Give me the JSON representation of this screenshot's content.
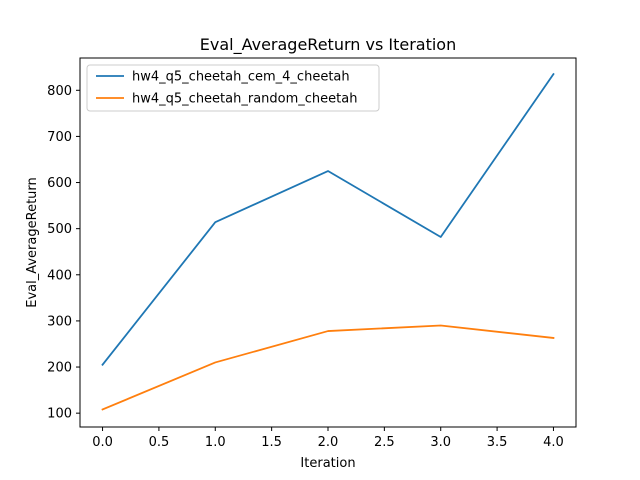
{
  "chart_data": {
    "type": "line",
    "title": "Eval_AverageReturn vs Iteration",
    "xlabel": "Iteration",
    "ylabel": "Eval_AverageReturn",
    "x": [
      0,
      1,
      2,
      3,
      4
    ],
    "xlim": [
      -0.2,
      4.2
    ],
    "ylim": [
      70,
      870
    ],
    "xticks": [
      0.0,
      0.5,
      1.0,
      1.5,
      2.0,
      2.5,
      3.0,
      3.5,
      4.0
    ],
    "xtick_labels": [
      "0.0",
      "0.5",
      "1.0",
      "1.5",
      "2.0",
      "2.5",
      "3.0",
      "3.5",
      "4.0"
    ],
    "yticks": [
      100,
      200,
      300,
      400,
      500,
      600,
      700,
      800
    ],
    "ytick_labels": [
      "100",
      "200",
      "300",
      "400",
      "500",
      "600",
      "700",
      "800"
    ],
    "grid": false,
    "legend_position": "top-left",
    "series": [
      {
        "name": "hw4_q5_cheetah_cem_4_cheetah",
        "color": "#1f77b4",
        "values": [
          205,
          514,
          625,
          482,
          835
        ]
      },
      {
        "name": "hw4_q5_cheetah_random_cheetah",
        "color": "#ff7f0e",
        "values": [
          108,
          210,
          278,
          290,
          263
        ]
      }
    ]
  }
}
